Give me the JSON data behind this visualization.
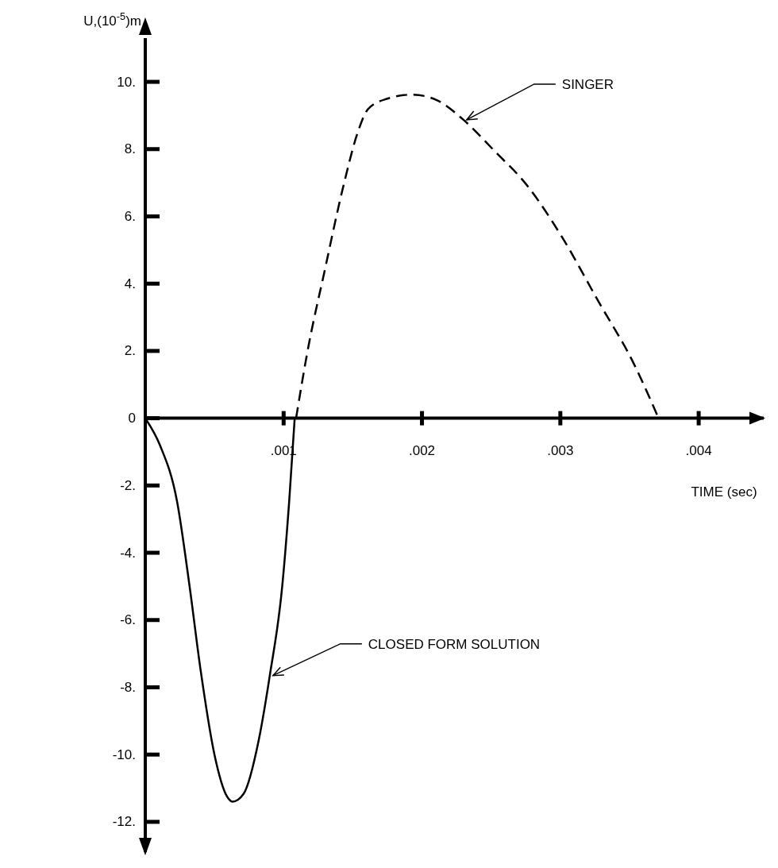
{
  "chart_data": {
    "type": "line",
    "xlabel": "TIME (sec)",
    "ylabel": "U,(10$^{-5}$)m",
    "legend": false,
    "grid": false,
    "marker": "none",
    "xlim": [
      0,
      0.00447
    ],
    "ylim": [
      -12.9,
      11.3
    ],
    "xticks": [
      {
        "value": 0.001,
        "label": ".001"
      },
      {
        "value": 0.002,
        "label": ".002"
      },
      {
        "value": 0.003,
        "label": ".003"
      },
      {
        "value": 0.004,
        "label": ".004"
      }
    ],
    "yticks": [
      {
        "value": -12,
        "label": "-12."
      },
      {
        "value": -10,
        "label": "-10."
      },
      {
        "value": -8,
        "label": "-8."
      },
      {
        "value": -6,
        "label": "-6."
      },
      {
        "value": -4,
        "label": "-4."
      },
      {
        "value": -2,
        "label": "-2."
      },
      0,
      {
        "value": 2,
        "label": "2."
      },
      {
        "value": 4,
        "label": "4."
      },
      {
        "value": 6,
        "label": "6."
      },
      {
        "value": 8,
        "label": "8."
      },
      {
        "value": 10,
        "label": "10."
      }
    ],
    "series": [
      {
        "name": "CLOSED FORM SOLUTION",
        "color": "#000000",
        "line_style": "solid",
        "x": [
          0,
          0.000107,
          0.00023,
          0.00032,
          0.0004,
          0.0005,
          0.00059,
          0.00063,
          0.00071,
          0.00082,
          0.0009,
          0.00099,
          0.00104,
          0.00108
        ],
        "values": [
          0,
          -0.81,
          -2.48,
          -4.99,
          -7.49,
          -10.0,
          -11.24,
          -11.4,
          -11.17,
          -9.57,
          -7.65,
          -4.99,
          -2.48,
          0
        ]
      },
      {
        "name": "SINGER",
        "color": "#000000",
        "line_style": "dashed",
        "x": [
          0.00109,
          0.00117,
          0.0013,
          0.00143,
          0.00154,
          0.00161,
          0.00175,
          0.00193,
          0.00211,
          0.0023,
          0.00253,
          0.00275,
          0.00301,
          0.00327,
          0.00353,
          0.00371
        ],
        "values": [
          0,
          1.93,
          4.45,
          6.87,
          8.55,
          9.19,
          9.5,
          9.62,
          9.45,
          8.87,
          7.92,
          6.97,
          5.4,
          3.51,
          1.63,
          0
        ]
      }
    ]
  }
}
